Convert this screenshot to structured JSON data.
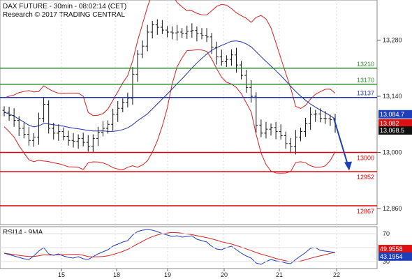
{
  "chart_data": {
    "type": "candlestick",
    "title_line1": "DAX FUTURE - 30min - 08:02:14 (CET)",
    "title_line2": "Research © 2017 TRADING CENTRAL",
    "x_labels": [
      "15",
      "18",
      "19",
      "20",
      "21",
      "22"
    ],
    "y_ticks": [
      "13,280",
      "13,140",
      "13,000",
      "12,860"
    ],
    "ylim": [
      12820,
      13380
    ],
    "levels": [
      {
        "label": "13210",
        "value": 13210,
        "color": "#2e8b2e"
      },
      {
        "label": "13170",
        "value": 13170,
        "color": "#2e8b2e"
      },
      {
        "label": "13137",
        "value": 13137,
        "color": "#2233aa"
      },
      {
        "label": "13000",
        "value": 13000,
        "color": "#dd0000"
      },
      {
        "label": "12952",
        "value": 12952,
        "color": "#dd0000"
      },
      {
        "label": "12867",
        "value": 12867,
        "color": "#dd0000"
      }
    ],
    "badges": [
      {
        "label": "13,084.7",
        "value": 13084.7,
        "color": "#1f3fb8"
      },
      {
        "label": "13,082",
        "value": 13082,
        "color": "#dd1111"
      },
      {
        "label": "13,068.5",
        "value": 13068.5,
        "color": "#111111"
      }
    ],
    "close_series": [
      13100,
      13092,
      13080,
      13060,
      13045,
      13030,
      13038,
      13085,
      13120,
      13060,
      13048,
      13052,
      13040,
      13030,
      13028,
      13035,
      13025,
      13015,
      13035,
      13050,
      13060,
      13070,
      13095,
      13110,
      13125,
      13135,
      13195,
      13245,
      13265,
      13300,
      13318,
      13312,
      13305,
      13300,
      13298,
      13300,
      13296,
      13302,
      13304,
      13296,
      13292,
      13288,
      13262,
      13238,
      13226,
      13232,
      13243,
      13218,
      13192,
      13162,
      13140,
      13068,
      13048,
      13058,
      13062,
      13052,
      13042,
      13022,
      13014,
      13038,
      13052,
      13072,
      13095,
      13096,
      13085,
      13084,
      13082,
      13068
    ],
    "rsi": {
      "title": "RSI14 - 9MA",
      "y_ticks": [
        "70",
        "50",
        "30"
      ],
      "ylim": [
        20,
        80
      ],
      "badges": [
        {
          "label": "49.9558",
          "value": 49.9558,
          "color": "#dd1111"
        },
        {
          "label": "43.1954",
          "value": 43.1954,
          "color": "#1f3fb8"
        }
      ],
      "values": [
        42,
        40,
        38,
        36,
        34,
        33,
        38,
        45,
        50,
        41,
        39,
        41,
        38,
        36,
        35,
        37,
        34,
        33,
        37,
        41,
        44,
        47,
        52,
        55,
        58,
        60,
        68,
        73,
        75,
        76,
        75,
        73,
        70,
        68,
        66,
        67,
        65,
        66,
        67,
        62,
        60,
        58,
        52,
        48,
        47,
        50,
        52,
        47,
        42,
        38,
        35,
        28,
        26,
        30,
        33,
        31,
        30,
        28,
        27,
        33,
        38,
        43,
        49,
        50,
        46,
        45,
        44,
        43
      ]
    }
  }
}
